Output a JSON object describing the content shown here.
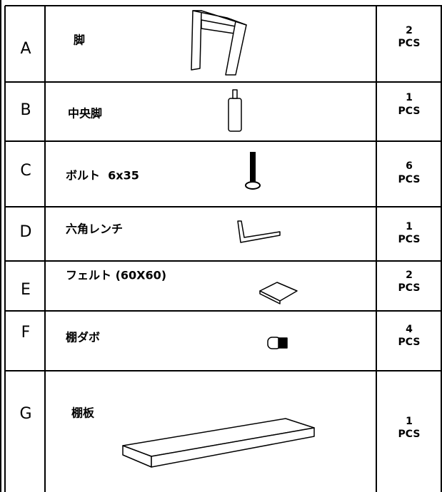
{
  "table": {
    "rows": [
      {
        "letter": "A",
        "name": "脚",
        "qty": "2",
        "unit": "PCS"
      },
      {
        "letter": "B",
        "name": "中央脚",
        "qty": "1",
        "unit": "PCS"
      },
      {
        "letter": "C",
        "name": "ボルト  6x35",
        "qty": "6",
        "unit": "PCS"
      },
      {
        "letter": "D",
        "name": "六角レンチ",
        "qty": "1",
        "unit": "PCS"
      },
      {
        "letter": "E",
        "name": "フェルト (60X60)",
        "qty": "2",
        "unit": "PCS"
      },
      {
        "letter": "F",
        "name": "棚ダボ",
        "qty": "4",
        "unit": "PCS"
      },
      {
        "letter": "G",
        "name": "棚板",
        "qty": "1",
        "unit": "PCS"
      }
    ]
  }
}
